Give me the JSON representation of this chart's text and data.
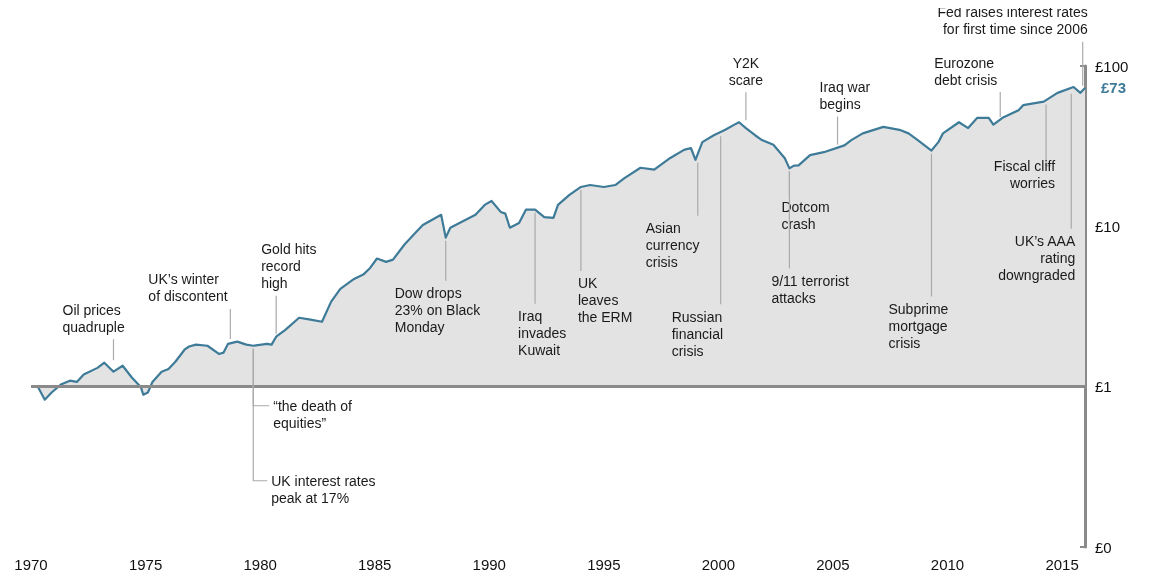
{
  "chart_data": {
    "type": "area",
    "log": "y",
    "grid": false,
    "xlim": [
      1970,
      2016
    ],
    "xticks": [
      1970,
      1975,
      1980,
      1985,
      1990,
      1995,
      2000,
      2005,
      2010,
      2015
    ],
    "ylim": [
      0.1,
      100
    ],
    "yticks": [
      {
        "value": 0.1,
        "label": "£0"
      },
      {
        "value": 1,
        "label": "£1"
      },
      {
        "value": 10,
        "label": "£10"
      },
      {
        "value": 100,
        "label": "£100"
      }
    ],
    "ref_lines": [
      {
        "axis": "y",
        "value": 1,
        "color": "#8a8a8a"
      }
    ],
    "series": [
      {
        "color": "#3e7b98",
        "x": [
          1970.3,
          1970.6,
          1970.9,
          1971.3,
          1971.7,
          1972.0,
          1972.3,
          1972.9,
          1973.2,
          1973.6,
          1974.0,
          1974.4,
          1974.8,
          1974.9,
          1975.1,
          1975.3,
          1975.7,
          1976.0,
          1976.3,
          1976.7,
          1976.9,
          1977.2,
          1977.7,
          1978.2,
          1978.4,
          1978.6,
          1979.0,
          1979.4,
          1979.7,
          1980.3,
          1980.5,
          1980.7,
          1981.1,
          1981.7,
          1982.2,
          1982.7,
          1983.1,
          1983.5,
          1984.1,
          1984.5,
          1984.8,
          1985.1,
          1985.5,
          1985.8,
          1986.3,
          1986.8,
          1987.1,
          1987.9,
          1988.1,
          1988.3,
          1988.7,
          1989.4,
          1989.8,
          1990.1,
          1990.5,
          1990.7,
          1990.9,
          1991.3,
          1991.6,
          1992.0,
          1992.4,
          1992.8,
          1993.0,
          1993.5,
          1994.0,
          1994.4,
          1995.0,
          1995.5,
          1995.9,
          1996.6,
          1997.2,
          1997.9,
          1998.5,
          1998.8,
          1999.0,
          1999.3,
          1999.8,
          2000.3,
          2000.7,
          2000.9,
          2001.2,
          2001.6,
          2001.9,
          2002.4,
          2002.9,
          2003.1,
          2003.3,
          2003.5,
          2004.0,
          2004.6,
          2005.5,
          2005.8,
          2006.3,
          2007.2,
          2007.9,
          2008.3,
          2008.7,
          2009.3,
          2009.6,
          2009.8,
          2010.5,
          2010.9,
          2011.3,
          2011.8,
          2012.0,
          2012.4,
          2013.1,
          2013.3,
          2014.2,
          2014.8,
          2015.5,
          2015.8,
          2016.0
        ],
        "values": [
          1.0,
          0.83,
          0.92,
          1.03,
          1.09,
          1.07,
          1.19,
          1.31,
          1.41,
          1.24,
          1.35,
          1.14,
          0.99,
          0.89,
          0.92,
          1.07,
          1.24,
          1.29,
          1.43,
          1.7,
          1.78,
          1.83,
          1.8,
          1.6,
          1.63,
          1.85,
          1.91,
          1.83,
          1.8,
          1.85,
          1.83,
          2.05,
          2.26,
          2.69,
          2.62,
          2.54,
          3.39,
          4.07,
          4.7,
          5.0,
          5.5,
          6.3,
          6.0,
          6.2,
          7.7,
          9.2,
          10.2,
          11.8,
          8.5,
          9.8,
          10.5,
          11.8,
          13.6,
          14.4,
          12.3,
          12.0,
          9.8,
          10.5,
          12.7,
          12.7,
          11.4,
          11.3,
          13.6,
          15.7,
          17.6,
          18.1,
          17.6,
          18.1,
          20,
          23.2,
          22.6,
          26.7,
          30,
          30.8,
          26,
          33.5,
          37,
          40,
          43.1,
          44.6,
          41,
          37,
          34.5,
          32.3,
          26.6,
          23,
          23.9,
          24,
          27.8,
          29,
          32,
          34.5,
          38,
          41.7,
          40,
          38,
          34.5,
          29.7,
          33.5,
          38,
          44.6,
          41,
          47.5,
          47.5,
          43.1,
          47.5,
          53,
          57,
          60,
          68,
          74,
          68,
          73
        ],
        "value_labels": [
          null,
          null,
          null,
          null,
          null,
          null,
          null,
          null,
          null,
          null,
          null,
          null,
          null,
          null,
          null,
          null,
          null,
          null,
          null,
          null,
          null,
          null,
          null,
          null,
          null,
          null,
          null,
          null,
          null,
          null,
          null,
          null,
          null,
          null,
          null,
          null,
          null,
          null,
          null,
          null,
          null,
          null,
          null,
          null,
          null,
          null,
          null,
          null,
          null,
          null,
          null,
          null,
          null,
          null,
          null,
          null,
          null,
          null,
          null,
          null,
          null,
          null,
          null,
          null,
          null,
          null,
          null,
          null,
          null,
          null,
          null,
          null,
          null,
          null,
          null,
          null,
          null,
          null,
          null,
          null,
          null,
          null,
          null,
          null,
          null,
          null,
          null,
          null,
          null,
          null,
          null,
          null,
          null,
          null,
          null,
          null,
          null,
          null,
          null,
          null,
          null,
          null,
          null,
          null,
          null,
          null,
          null,
          null,
          null,
          null,
          null,
          null,
          "£73"
        ]
      }
    ],
    "annotations": [
      {
        "text": "Oil prices\nquadruple",
        "x": 1973.6,
        "y": 1.4
      },
      {
        "text": "UK’s winter\nof discontent",
        "x": 1978.7,
        "y": 1.9
      },
      {
        "text": "Gold hits\nrecord\nhigh",
        "x": 1980.7,
        "y": 2.05
      },
      {
        "text": "“the death of\nequities”",
        "x": 1979.7,
        "y": 1.8
      },
      {
        "text": "UK interest rates\npeak at 17%",
        "x": 1979.7,
        "y": 1.8
      },
      {
        "text": "Dow drops\n23% on Black\nMonday",
        "x": 1988.1,
        "y": 8.5
      },
      {
        "text": "Iraq\ninvades\nKuwait",
        "x": 1992.0,
        "y": 12.7
      },
      {
        "text": "UK\nleaves\nthe ERM",
        "x": 1994.0,
        "y": 17.6
      },
      {
        "text": "Asian\ncurrency\ncrisis",
        "x": 1999.1,
        "y": 26
      },
      {
        "text": "Russian\nfinancial\ncrisis",
        "x": 2000.1,
        "y": 38
      },
      {
        "text": "Y2K\nscare",
        "x": 2001.2,
        "y": 44
      },
      {
        "text": "Dotcom\ncrash",
        "x": 2003.1,
        "y": 23
      },
      {
        "text": "9/11 terrorist\nattacks",
        "x": 2003.1,
        "y": 23
      },
      {
        "text": "Iraq war\nbegins",
        "x": 2005.2,
        "y": 31
      },
      {
        "text": "Subprime\nmortgage\ncrisis",
        "x": 2009.3,
        "y": 29.7
      },
      {
        "text": "Eurozone\ndebt crisis",
        "x": 2012.3,
        "y": 46
      },
      {
        "text": "Fiscal cliff\nworries",
        "x": 2014.3,
        "y": 60
      },
      {
        "text": "UK’s AAA\nrating\ndowngraded",
        "x": 2015.4,
        "y": 70
      },
      {
        "text": "Fed raises interest rates\nfor first time since 2006",
        "x": 2015.9,
        "y": 72
      }
    ]
  }
}
